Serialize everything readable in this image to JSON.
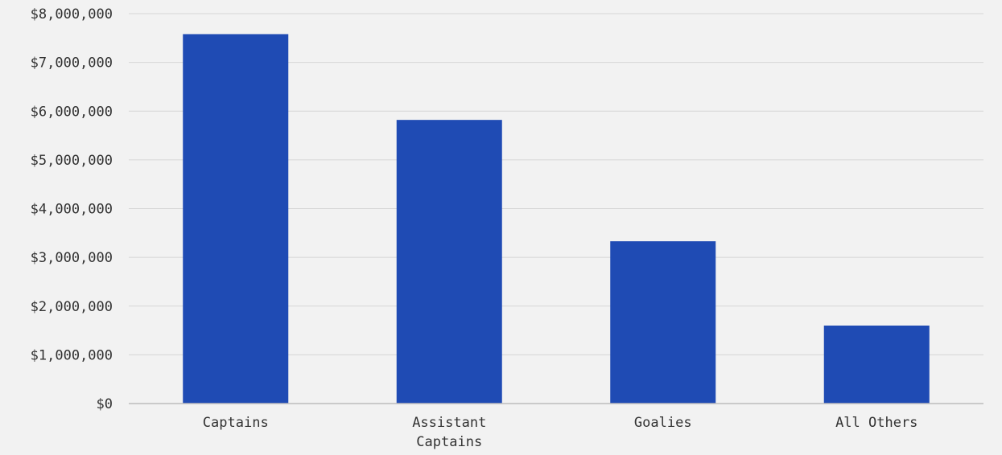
{
  "chart_data": {
    "type": "bar",
    "categories": [
      [
        "Captains"
      ],
      [
        "Assistant",
        "Captains"
      ],
      [
        "Goalies"
      ],
      [
        "All Others"
      ]
    ],
    "values": [
      7580000,
      5820000,
      3330000,
      1600000
    ],
    "title": "",
    "xlabel": "",
    "ylabel": "",
    "ylim": [
      0,
      8000000
    ],
    "yticks": [
      "$0",
      "$1,000,000",
      "$2,000,000",
      "$3,000,000",
      "$4,000,000",
      "$5,000,000",
      "$6,000,000",
      "$7,000,000",
      "$8,000,000"
    ],
    "grid": true,
    "legend": "none",
    "colors": {
      "bar": "#1f4bb4",
      "grid": "#d6d6d6",
      "axis": "#bdbdbd",
      "background": "#f2f2f2"
    }
  }
}
